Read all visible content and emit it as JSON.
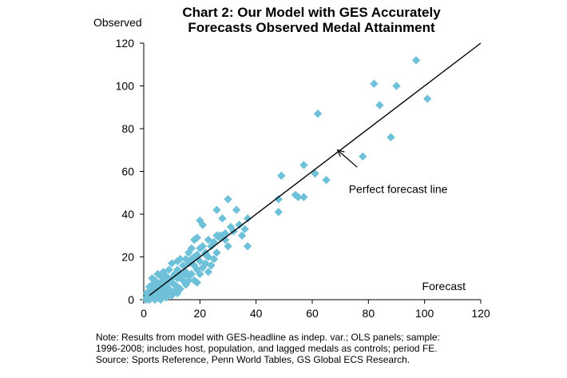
{
  "chart_data": {
    "type": "scatter",
    "title_line1": "Chart 2: Our Model with GES Accurately",
    "title_line2": "Forecasts Observed Medal Attainment",
    "ylabel": "Observed",
    "xlabel": "Forecast",
    "xlim": [
      0,
      120
    ],
    "ylim": [
      0,
      120
    ],
    "xticks": [
      "0",
      "20",
      "40",
      "60",
      "80",
      "100",
      "120"
    ],
    "yticks": [
      "0",
      "20",
      "40",
      "60",
      "80",
      "100",
      "120"
    ],
    "grid": false,
    "marker_color": "#6ec1d8",
    "marker_shape": "diamond",
    "reference_line": {
      "label": "Perfect forecast line",
      "x": [
        2,
        120
      ],
      "y": [
        2,
        120
      ]
    },
    "annotation": {
      "text": "Perfect forecast line",
      "arrow_tip": [
        69,
        70
      ],
      "arrow_tail": [
        76,
        62
      ],
      "text_at": [
        73,
        50
      ]
    },
    "points": [
      [
        97,
        112
      ],
      [
        82,
        101
      ],
      [
        90,
        100
      ],
      [
        101,
        94
      ],
      [
        84,
        91
      ],
      [
        62,
        87
      ],
      [
        88,
        76
      ],
      [
        78,
        67
      ],
      [
        57,
        63
      ],
      [
        61,
        59
      ],
      [
        49,
        58
      ],
      [
        65,
        56
      ],
      [
        48,
        47
      ],
      [
        55,
        48
      ],
      [
        57,
        48
      ],
      [
        54,
        49
      ],
      [
        48,
        41
      ],
      [
        30,
        47
      ],
      [
        26,
        42
      ],
      [
        33,
        42
      ],
      [
        37,
        38
      ],
      [
        28,
        38
      ],
      [
        20,
        37
      ],
      [
        21,
        35
      ],
      [
        31,
        34
      ],
      [
        36,
        33
      ],
      [
        29,
        31
      ],
      [
        26,
        30
      ],
      [
        27,
        29
      ],
      [
        28,
        30
      ],
      [
        25,
        27
      ],
      [
        23,
        28
      ],
      [
        19,
        29
      ],
      [
        18,
        28
      ],
      [
        21,
        25
      ],
      [
        20,
        24
      ],
      [
        24,
        25
      ],
      [
        17,
        24
      ],
      [
        16,
        22
      ],
      [
        22,
        22
      ],
      [
        19,
        21
      ],
      [
        30,
        25
      ],
      [
        37,
        25
      ],
      [
        18,
        20
      ],
      [
        15,
        19
      ],
      [
        20,
        18
      ],
      [
        16,
        17
      ],
      [
        14,
        16
      ],
      [
        18,
        16
      ],
      [
        22,
        17
      ],
      [
        12,
        18
      ],
      [
        10,
        17
      ],
      [
        13,
        19
      ],
      [
        19,
        14
      ],
      [
        21,
        15
      ],
      [
        24,
        16
      ],
      [
        17,
        12
      ],
      [
        15,
        13
      ],
      [
        12,
        14
      ],
      [
        11,
        12
      ],
      [
        9,
        14
      ],
      [
        7,
        13
      ],
      [
        6,
        11
      ],
      [
        5,
        12
      ],
      [
        8,
        11
      ],
      [
        10,
        10
      ],
      [
        12,
        10
      ],
      [
        13,
        12
      ],
      [
        14,
        11
      ],
      [
        16,
        11
      ],
      [
        18,
        9
      ],
      [
        19,
        8
      ],
      [
        9,
        9
      ],
      [
        7,
        9
      ],
      [
        6,
        8
      ],
      [
        4,
        9
      ],
      [
        3,
        10
      ],
      [
        5,
        7
      ],
      [
        8,
        7
      ],
      [
        10,
        8
      ],
      [
        11,
        7
      ],
      [
        3,
        7
      ],
      [
        2,
        6
      ],
      [
        4,
        6
      ],
      [
        6,
        6
      ],
      [
        7,
        5
      ],
      [
        9,
        5
      ],
      [
        12,
        6
      ],
      [
        2,
        4
      ],
      [
        3,
        4
      ],
      [
        5,
        4
      ],
      [
        8,
        4
      ],
      [
        1,
        3
      ],
      [
        3,
        2
      ],
      [
        4,
        3
      ],
      [
        6,
        3
      ],
      [
        7,
        3
      ],
      [
        9,
        3
      ],
      [
        1,
        1
      ],
      [
        2,
        1
      ],
      [
        3,
        1
      ],
      [
        5,
        1
      ],
      [
        6,
        2
      ],
      [
        1,
        0
      ],
      [
        2,
        0
      ],
      [
        4,
        0
      ],
      [
        6,
        0
      ],
      [
        8,
        1
      ],
      [
        10,
        2
      ],
      [
        12,
        3
      ],
      [
        13,
        5
      ],
      [
        15,
        7
      ],
      [
        16,
        9
      ],
      [
        20,
        12
      ],
      [
        23,
        13
      ],
      [
        14,
        9
      ],
      [
        11,
        4
      ],
      [
        27,
        30
      ],
      [
        32,
        32
      ],
      [
        34,
        35
      ],
      [
        29,
        28
      ],
      [
        26,
        22
      ],
      [
        23,
        20
      ],
      [
        25,
        19
      ],
      [
        22,
        21
      ],
      [
        17,
        19
      ],
      [
        35,
        30
      ]
    ]
  },
  "note": {
    "line1": "Note: Results from model with GES-headline  as  indep. var.; OLS panels; sample:",
    "line2": "1996-2008; includes host, population, and lagged medals as controls; period FE.",
    "line3": "Source: Sports Reference, Penn World Tables, GS Global ECS Research."
  }
}
